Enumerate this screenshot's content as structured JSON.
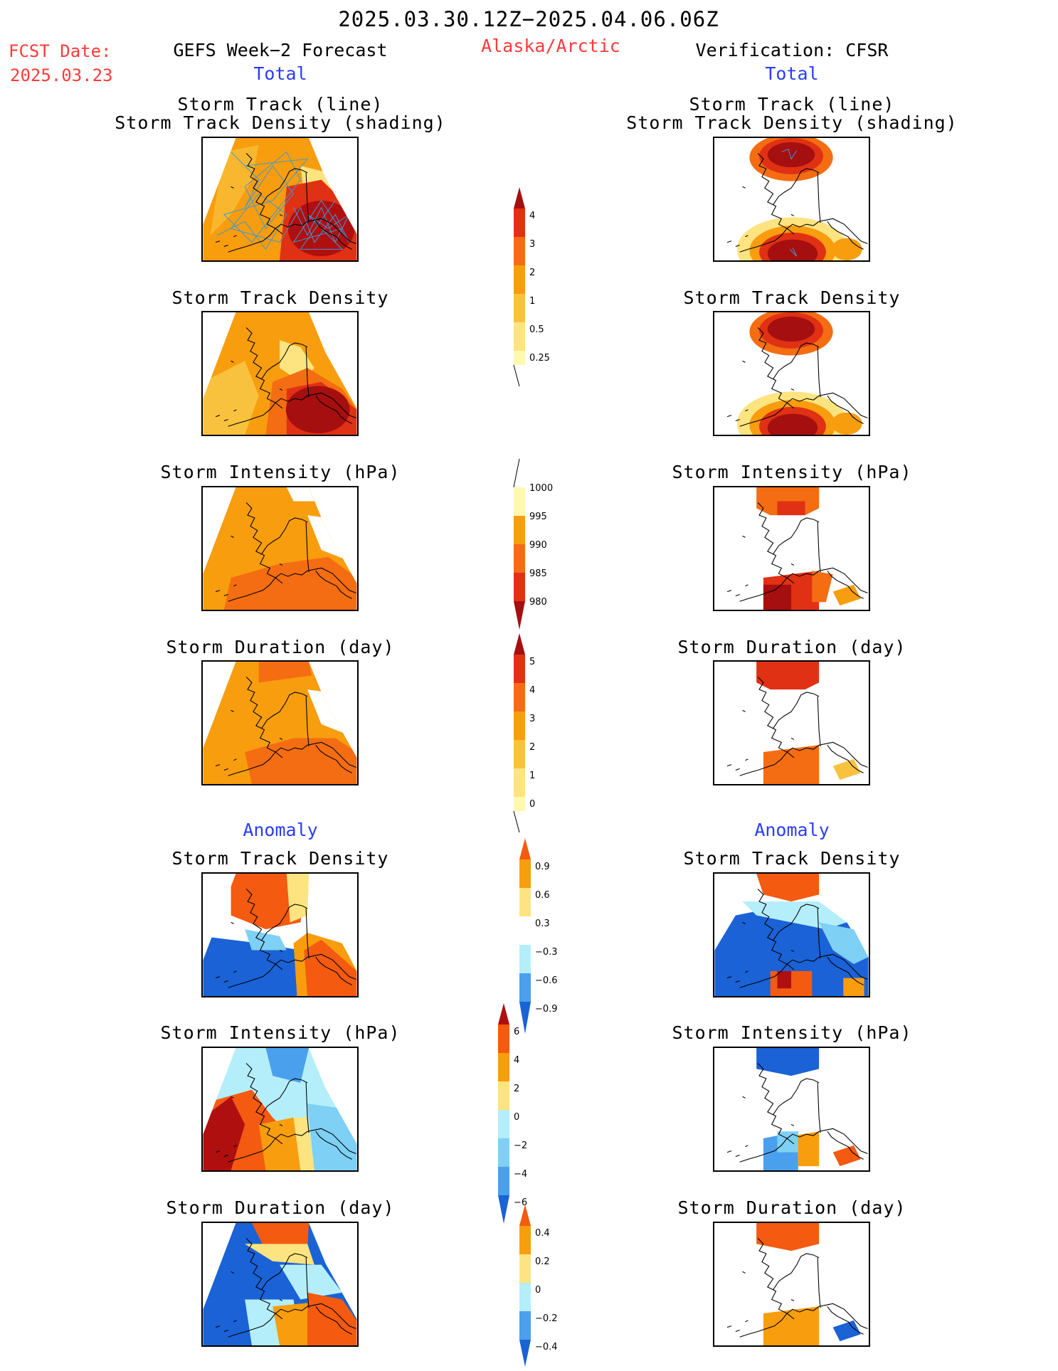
{
  "header": {
    "date_range": "2025.03.30.12Z−2025.04.06.06Z",
    "fcst_label": "FCST Date:",
    "fcst_date": "2025.03.23",
    "left_title": "GEFS Week−2 Forecast",
    "region": "Alaska/Arctic",
    "right_title": "Verification: CFSR",
    "left_total": "Total",
    "right_total": "Total",
    "left_anomaly": "Anomaly",
    "right_anomaly": "Anomaly"
  },
  "panel_titles": {
    "track_line": "Storm Track (line)",
    "track_density_shading": "Storm Track Density (shading)",
    "track_density": "Storm Track Density",
    "intensity": "Storm Intensity (hPa)",
    "duration": "Storm Duration (day)"
  },
  "colorbars": {
    "density_total": [
      "4",
      "3",
      "2",
      "1",
      "0.5",
      "0.25"
    ],
    "intensity_total": [
      "1000",
      "995",
      "990",
      "985",
      "980"
    ],
    "duration_total": [
      "5",
      "4",
      "3",
      "2",
      "1",
      "0"
    ],
    "density_anomaly": [
      "0.9",
      "0.6",
      "0.3",
      "−0.3",
      "−0.6",
      "−0.9"
    ],
    "intensity_anomaly": [
      "6",
      "4",
      "2",
      "0",
      "−2",
      "−4",
      "−6"
    ],
    "duration_anomaly": [
      "0.4",
      "0.2",
      "0",
      "−0.2",
      "−0.4"
    ]
  },
  "colors": {
    "title_red": "#ff3a3a",
    "label_blue": "#2a3cff",
    "total_scale": [
      "#fff9b0",
      "#fde480",
      "#f9c23e",
      "#f89d0e",
      "#f46d12",
      "#e03114",
      "#a50f0f"
    ],
    "anomaly_warm": [
      "#fde480",
      "#f89d0e",
      "#f45a10",
      "#b00f0f"
    ],
    "anomaly_cool": [
      "#b4eefa",
      "#7ed0f4",
      "#4aa0ec",
      "#1a62d6"
    ]
  }
}
